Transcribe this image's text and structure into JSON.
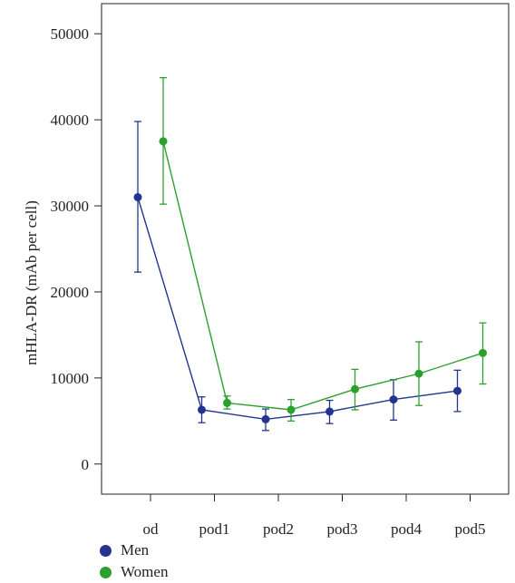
{
  "chart_data": {
    "type": "line",
    "categories": [
      "od",
      "pod1",
      "pod2",
      "pod3",
      "pod4",
      "pod5"
    ],
    "ylabel": "mHLA-DR (mAb per cell)",
    "ylim": [
      -3500,
      53500
    ],
    "yticks": [
      0,
      10000,
      20000,
      30000,
      40000,
      50000
    ],
    "error_bars": true,
    "legend_position": "bottom-left",
    "series": [
      {
        "name": "Men",
        "color": "#23358f",
        "values": [
          31000,
          6300,
          5200,
          6100,
          7500,
          8500
        ],
        "err_low": [
          22300,
          4800,
          3900,
          4700,
          5100,
          6100
        ],
        "err_high": [
          39800,
          7800,
          6400,
          7400,
          9800,
          10900
        ]
      },
      {
        "name": "Women",
        "color": "#2ca02c",
        "values": [
          37500,
          7100,
          6300,
          8700,
          10500,
          12900
        ],
        "err_low": [
          30200,
          6400,
          5000,
          6300,
          6800,
          9300
        ],
        "err_high": [
          44900,
          7900,
          7500,
          11000,
          14200,
          16400
        ]
      }
    ]
  }
}
